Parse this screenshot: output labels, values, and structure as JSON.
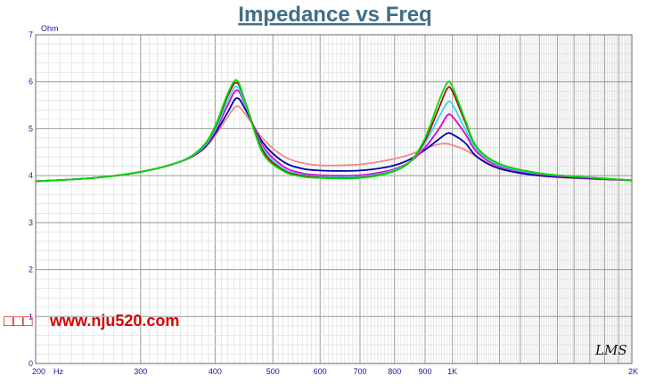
{
  "chart_data": {
    "type": "line",
    "title": "Impedance vs Freq",
    "y_unit": "Ohm",
    "x_unit": "Hz",
    "x_scale": "log",
    "xlim": [
      200,
      2000
    ],
    "ylim": [
      0,
      7
    ],
    "grid": true,
    "x_ticks": [
      {
        "value": 200,
        "label": "200"
      },
      {
        "value": 300,
        "label": "300"
      },
      {
        "value": 400,
        "label": "400"
      },
      {
        "value": 500,
        "label": "500"
      },
      {
        "value": 600,
        "label": "600"
      },
      {
        "value": 700,
        "label": "700"
      },
      {
        "value": 800,
        "label": "800"
      },
      {
        "value": 900,
        "label": "900"
      },
      {
        "value": 1000,
        "label": "1K"
      },
      {
        "value": 2000,
        "label": "2K"
      }
    ],
    "y_ticks": [
      0,
      1,
      2,
      3,
      4,
      5,
      6,
      7
    ],
    "x": [
      200,
      250,
      300,
      350,
      380,
      400,
      420,
      435,
      450,
      480,
      520,
      560,
      600,
      650,
      700,
      750,
      800,
      850,
      900,
      950,
      980,
      1000,
      1050,
      1100,
      1200,
      1400,
      1700,
      2000
    ],
    "series": [
      {
        "color": "#00dd00",
        "values": [
          3.88,
          3.95,
          4.08,
          4.3,
          4.6,
          5.05,
          5.75,
          6.03,
          5.55,
          4.5,
          4.1,
          3.98,
          3.95,
          3.94,
          3.95,
          4.0,
          4.1,
          4.3,
          4.8,
          5.6,
          5.97,
          5.9,
          5.2,
          4.6,
          4.25,
          4.05,
          3.96,
          3.9
        ]
      },
      {
        "color": "#aa1010",
        "values": [
          3.88,
          3.95,
          4.08,
          4.3,
          4.6,
          5.03,
          5.7,
          5.98,
          5.55,
          4.55,
          4.12,
          4.0,
          3.96,
          3.95,
          3.96,
          4.01,
          4.1,
          4.3,
          4.75,
          5.45,
          5.85,
          5.8,
          5.15,
          4.6,
          4.25,
          4.05,
          3.96,
          3.9
        ]
      },
      {
        "color": "#30e0e0",
        "values": [
          3.88,
          3.95,
          4.08,
          4.3,
          4.58,
          4.98,
          5.6,
          5.9,
          5.5,
          4.6,
          4.15,
          4.02,
          3.98,
          3.97,
          3.98,
          4.03,
          4.12,
          4.3,
          4.7,
          5.25,
          5.55,
          5.52,
          5.0,
          4.55,
          4.22,
          4.04,
          3.96,
          3.9
        ]
      },
      {
        "color": "#dd00dd",
        "values": [
          3.88,
          3.95,
          4.08,
          4.3,
          4.57,
          4.95,
          5.5,
          5.82,
          5.48,
          4.65,
          4.2,
          4.05,
          4.01,
          4.0,
          4.01,
          4.06,
          4.14,
          4.3,
          4.6,
          5.0,
          5.28,
          5.26,
          4.9,
          4.5,
          4.2,
          4.03,
          3.95,
          3.9
        ]
      },
      {
        "color": "#0000aa",
        "values": [
          3.88,
          3.95,
          4.08,
          4.3,
          4.55,
          4.9,
          5.35,
          5.65,
          5.4,
          4.72,
          4.3,
          4.15,
          4.11,
          4.1,
          4.11,
          4.15,
          4.22,
          4.35,
          4.55,
          4.78,
          4.9,
          4.88,
          4.7,
          4.4,
          4.15,
          4.0,
          3.94,
          3.9
        ]
      },
      {
        "color": "#f08888",
        "values": [
          3.88,
          3.95,
          4.08,
          4.3,
          4.53,
          4.85,
          5.25,
          5.48,
          5.3,
          4.8,
          4.42,
          4.27,
          4.22,
          4.22,
          4.24,
          4.29,
          4.36,
          4.45,
          4.58,
          4.67,
          4.68,
          4.65,
          4.55,
          4.4,
          4.18,
          4.0,
          3.93,
          3.9
        ]
      }
    ]
  },
  "watermark": {
    "prefix": "□□□",
    "text": "www.nju520.com"
  },
  "logo_text": "LMS"
}
